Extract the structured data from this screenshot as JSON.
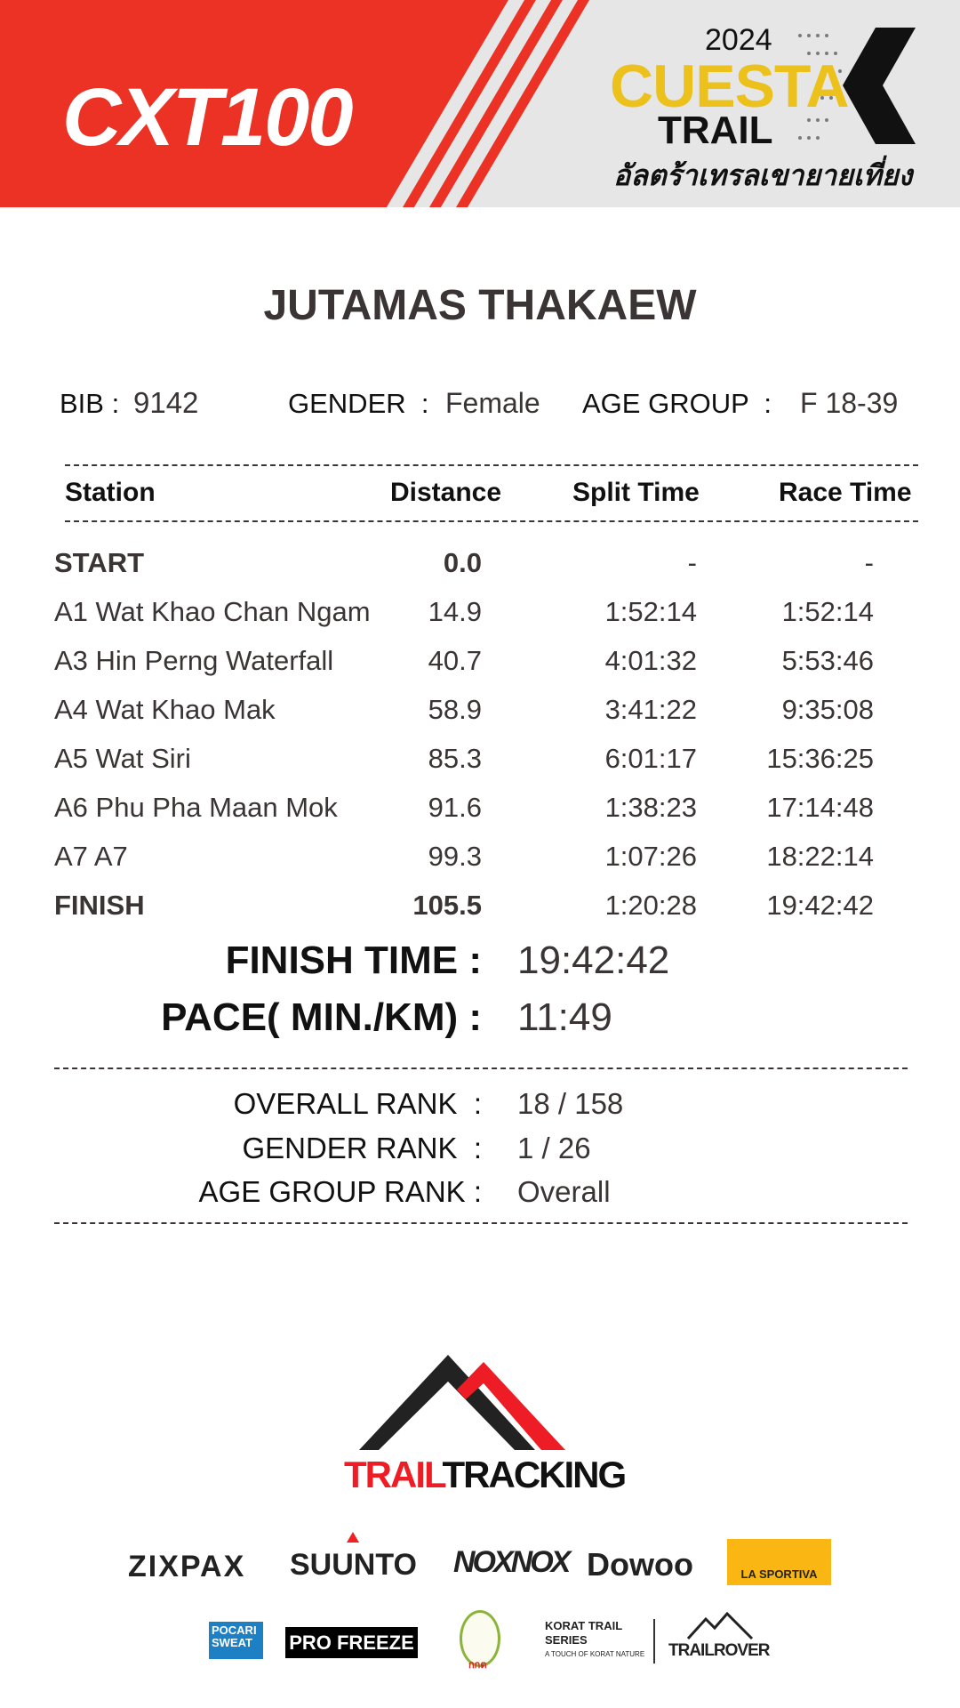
{
  "header": {
    "event_logo": "CXT100",
    "brand_year": "2024",
    "brand_name": "CUESTA",
    "brand_sub": "TRAIL",
    "brand_thai": "อัลตร้าเทรลเขายายเที่ยง",
    "colors": {
      "red": "#ec3125",
      "yellow": "#ecc11b",
      "gray": "#e6e6e6"
    }
  },
  "runner": {
    "name": "JUTAMAS THAKAEW",
    "bib_label": "BIB :",
    "bib": "9142",
    "gender_label": "GENDER  :",
    "gender": "Female",
    "age_group_label": "AGE GROUP  :",
    "age_group": "F 18-39"
  },
  "table": {
    "headers": [
      "Station",
      "Distance",
      "Split Time",
      "Race Time"
    ],
    "rows": [
      {
        "station": "START",
        "distance": "0.0",
        "split": "-",
        "race": "-",
        "bold": true
      },
      {
        "station": "A1 Wat Khao Chan Ngam",
        "distance": "14.9",
        "split": "1:52:14",
        "race": "1:52:14"
      },
      {
        "station": "A3 Hin Perng Waterfall",
        "distance": "40.7",
        "split": "4:01:32",
        "race": "5:53:46"
      },
      {
        "station": "A4 Wat Khao Mak",
        "distance": "58.9",
        "split": "3:41:22",
        "race": "9:35:08"
      },
      {
        "station": "A5 Wat Siri",
        "distance": "85.3",
        "split": "6:01:17",
        "race": "15:36:25"
      },
      {
        "station": "A6 Phu Pha Maan Mok",
        "distance": "91.6",
        "split": "1:38:23",
        "race": "17:14:48"
      },
      {
        "station": "A7 A7",
        "distance": "99.3",
        "split": "1:07:26",
        "race": "18:22:14"
      },
      {
        "station": "FINISH",
        "distance": "105.5",
        "split": "1:20:28",
        "race": "19:42:42",
        "bold": true
      }
    ]
  },
  "summary": {
    "finish_time_label": "FINISH TIME :",
    "finish_time": "19:42:42",
    "pace_label": "PACE( MIN./KM) :",
    "pace": "11:49"
  },
  "ranks": {
    "overall_label": "OVERALL RANK  :",
    "overall": "18 / 158",
    "gender_label": "GENDER RANK  :",
    "gender": "1 / 26",
    "age_group_label": "AGE GROUP RANK :",
    "age_group": "Overall"
  },
  "footer": {
    "logo_trail": "TRAIL",
    "logo_tracking": "TRACKING",
    "sponsors_row1": [
      "ZIXPAX",
      "SUUNTO",
      "NOXNOX",
      "Dowoo",
      "LA SPORTIVA"
    ],
    "sponsors_row2": [
      "POCARI SWEAT",
      "PRO FREEZE",
      "กกต",
      "KORAT TRAIL SERIES",
      "A TOUCH OF KORAT NATURE",
      "TRAILROVER"
    ]
  }
}
